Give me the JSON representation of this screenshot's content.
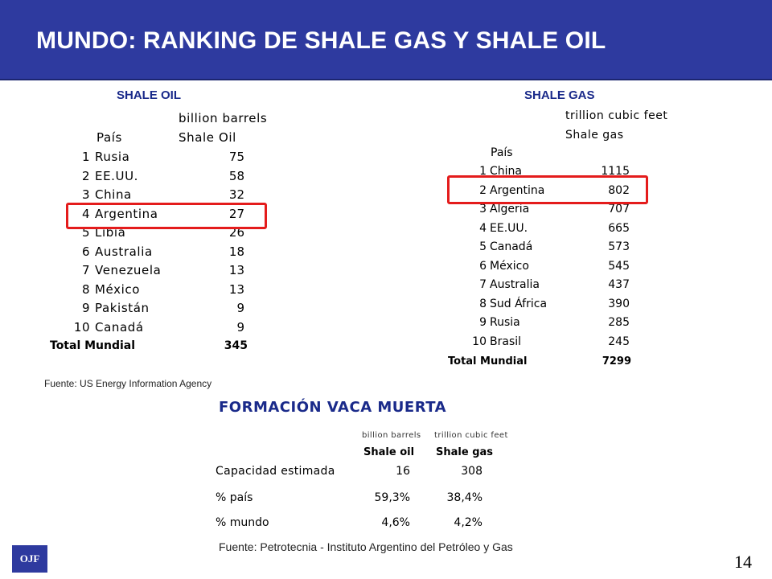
{
  "slide_title": "MUNDO: RANKING DE SHALE GAS Y SHALE OIL",
  "shale_oil": {
    "section_title": "SHALE OIL",
    "unit_header": "billion barrels",
    "col_country": "País",
    "col_value": "Shale Oil",
    "rows": [
      {
        "rank": "1",
        "country": "Rusia",
        "value": "75"
      },
      {
        "rank": "2",
        "country": "EE.UU.",
        "value": "58"
      },
      {
        "rank": "3",
        "country": "China",
        "value": "32"
      },
      {
        "rank": "4",
        "country": "Argentina",
        "value": "27"
      },
      {
        "rank": "5",
        "country": "Libia",
        "value": "26"
      },
      {
        "rank": "6",
        "country": "Australia",
        "value": "18"
      },
      {
        "rank": "7",
        "country": "Venezuela",
        "value": "13"
      },
      {
        "rank": "8",
        "country": "México",
        "value": "13"
      },
      {
        "rank": "9",
        "country": "Pakistán",
        "value": "9"
      },
      {
        "rank": "10",
        "country": "Canadá",
        "value": "9"
      }
    ],
    "total_label": "Total Mundial",
    "total_value": "345"
  },
  "shale_gas": {
    "section_title": "SHALE GAS",
    "unit_header": "trillion cubic feet",
    "col_value": "Shale gas",
    "col_country": "País",
    "rows": [
      {
        "rank": "1",
        "country": "China",
        "value": "1115"
      },
      {
        "rank": "2",
        "country": "Argentina",
        "value": "802"
      },
      {
        "rank": "3",
        "country": "Algeria",
        "value": "707"
      },
      {
        "rank": "4",
        "country": "EE.UU.",
        "value": "665"
      },
      {
        "rank": "5",
        "country": "Canadá",
        "value": "573"
      },
      {
        "rank": "6",
        "country": "México",
        "value": "545"
      },
      {
        "rank": "7",
        "country": "Australia",
        "value": "437"
      },
      {
        "rank": "8",
        "country": "Sud África",
        "value": "390"
      },
      {
        "rank": "9",
        "country": "Rusia",
        "value": "285"
      },
      {
        "rank": "10",
        "country": "Brasil",
        "value": "245"
      }
    ],
    "total_label": "Total Mundial",
    "total_value": "7299"
  },
  "source_eia": "Fuente: US Energy Information Agency",
  "vaca_muerta": {
    "title": "FORMACIÓN VACA MUERTA",
    "unit_oil": "billion barrels",
    "unit_gas": "trillion cubic feet",
    "col_oil": "Shale oil",
    "col_gas": "Shale gas",
    "rows": [
      {
        "label": "Capacidad estimada",
        "oil": "16",
        "gas": "308"
      },
      {
        "label": "% país",
        "oil": "59,3%",
        "gas": "38,4%"
      },
      {
        "label": "% mundo",
        "oil": "4,6%",
        "gas": "4,2%"
      }
    ],
    "source": "Fuente: Petrotecnia - Instituto Argentino del Petróleo y Gas"
  },
  "logo_text": "OJF",
  "page_number": "14",
  "colors": {
    "header_bg": "#2e3a9f",
    "highlight": "#e41c1c",
    "section_title": "#1a2a8a"
  }
}
